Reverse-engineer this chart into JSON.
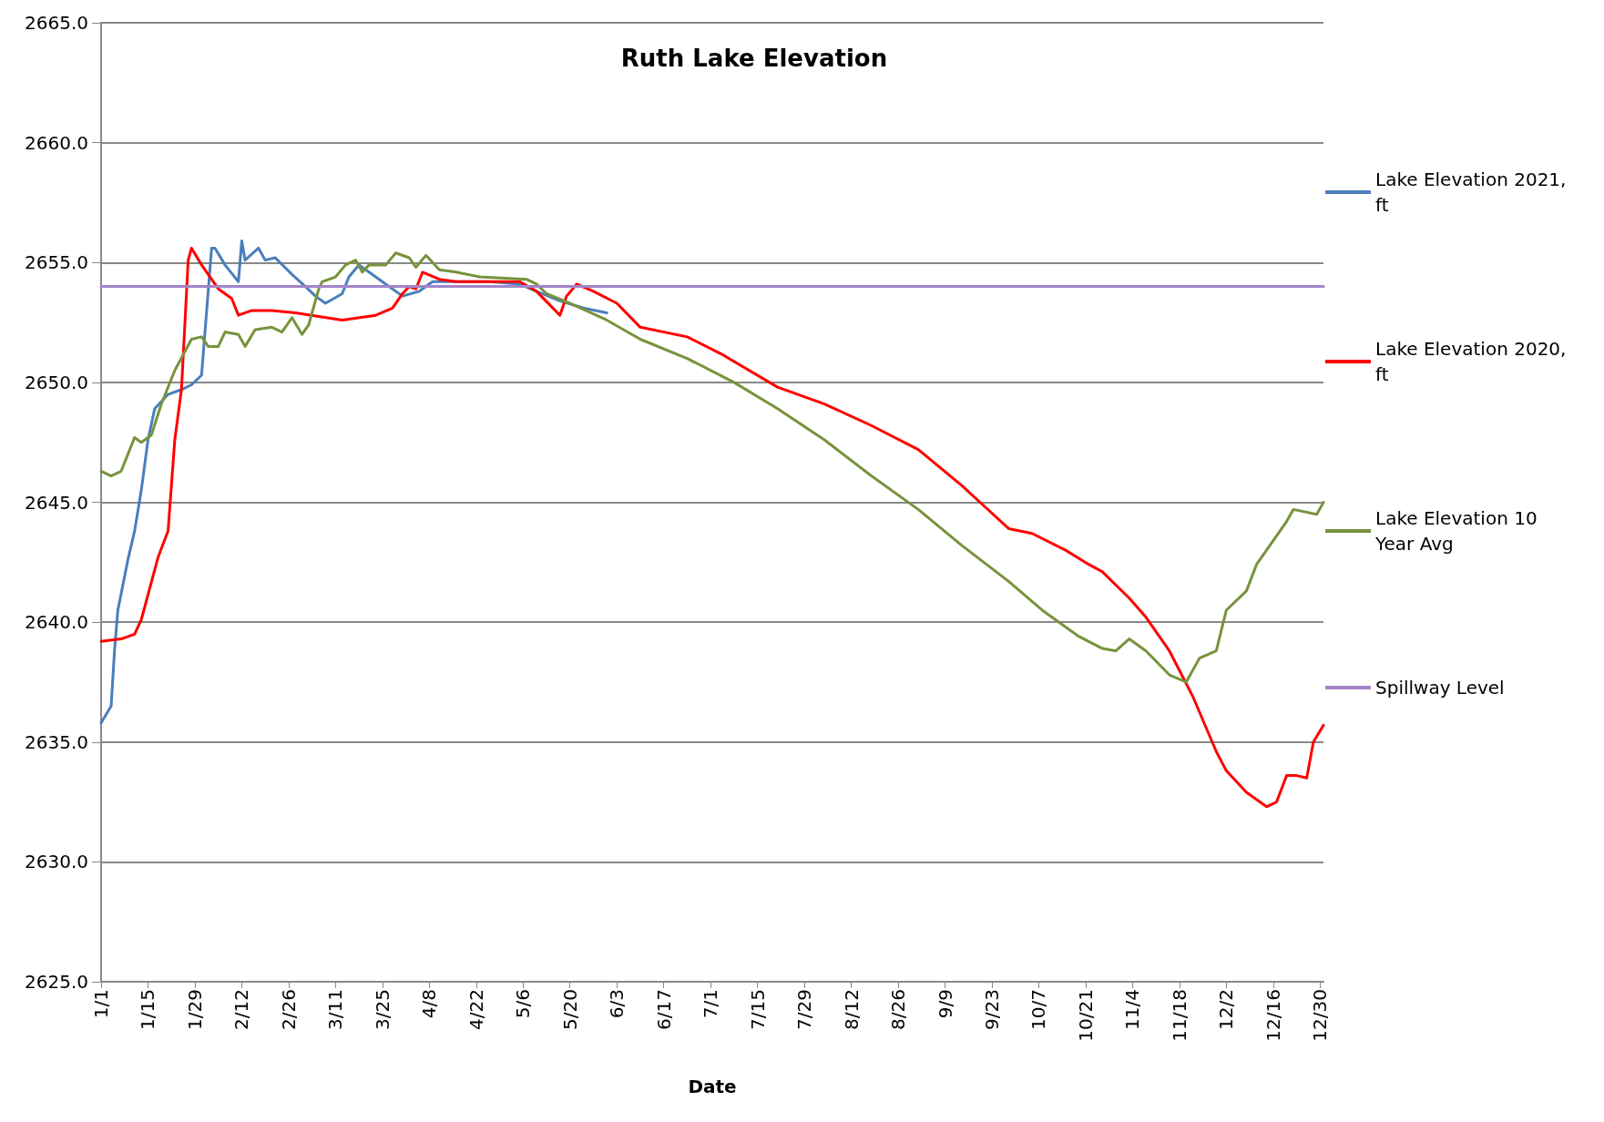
{
  "chart_data": {
    "type": "line",
    "title": "Ruth Lake Elevation",
    "xlabel": "Date",
    "xlim": [
      "2020-01-01",
      "2020-12-31"
    ],
    "xticks": [
      {
        "value": "2020-01-01",
        "label": "1/1"
      },
      {
        "value": "2020-01-15",
        "label": "1/15"
      },
      {
        "value": "2020-01-29",
        "label": "1/29"
      },
      {
        "value": "2020-02-12",
        "label": "2/12"
      },
      {
        "value": "2020-02-26",
        "label": "2/26"
      },
      {
        "value": "2020-03-11",
        "label": "3/11"
      },
      {
        "value": "2020-03-25",
        "label": "3/25"
      },
      {
        "value": "2020-04-08",
        "label": "4/8"
      },
      {
        "value": "2020-04-22",
        "label": "4/22"
      },
      {
        "value": "2020-05-06",
        "label": "5/6"
      },
      {
        "value": "2020-05-20",
        "label": "5/20"
      },
      {
        "value": "2020-06-03",
        "label": "6/3"
      },
      {
        "value": "2020-06-17",
        "label": "6/17"
      },
      {
        "value": "2020-07-01",
        "label": "7/1"
      },
      {
        "value": "2020-07-15",
        "label": "7/15"
      },
      {
        "value": "2020-07-29",
        "label": "7/29"
      },
      {
        "value": "2020-08-12",
        "label": "8/12"
      },
      {
        "value": "2020-08-26",
        "label": "8/26"
      },
      {
        "value": "2020-09-09",
        "label": "9/9"
      },
      {
        "value": "2020-09-23",
        "label": "9/23"
      },
      {
        "value": "2020-10-07",
        "label": "10/7"
      },
      {
        "value": "2020-10-21",
        "label": "10/21"
      },
      {
        "value": "2020-11-04",
        "label": "11/4"
      },
      {
        "value": "2020-11-18",
        "label": "11/18"
      },
      {
        "value": "2020-12-02",
        "label": "12/2"
      },
      {
        "value": "2020-12-16",
        "label": "12/16"
      },
      {
        "value": "2020-12-30",
        "label": "12/30"
      }
    ],
    "ylim": [
      2625,
      2665
    ],
    "yticks": [
      {
        "value": 2625,
        "label": "2625.0"
      },
      {
        "value": 2630,
        "label": "2630.0"
      },
      {
        "value": 2635,
        "label": "2635.0"
      },
      {
        "value": 2640,
        "label": "2640.0"
      },
      {
        "value": 2645,
        "label": "2645.0"
      },
      {
        "value": 2650,
        "label": "2650.0"
      },
      {
        "value": 2655,
        "label": "2655.0"
      },
      {
        "value": 2660,
        "label": "2660.0"
      },
      {
        "value": 2665,
        "label": "2665.0"
      }
    ],
    "grid": "y",
    "legend": "right",
    "marker": "none",
    "line_style": "solid",
    "series": [
      {
        "name": "Lake Elevation 2021, ft",
        "color": "#4a7ebb",
        "x": [
          "2020-01-01",
          "2020-01-04",
          "2020-01-05",
          "2020-01-06",
          "2020-01-09",
          "2020-01-11",
          "2020-01-13",
          "2020-01-15",
          "2020-01-17",
          "2020-01-21",
          "2020-01-25",
          "2020-01-28",
          "2020-01-31",
          "2020-02-03",
          "2020-02-04",
          "2020-02-07",
          "2020-02-11",
          "2020-02-12",
          "2020-02-13",
          "2020-02-17",
          "2020-02-19",
          "2020-02-22",
          "2020-02-27",
          "2020-03-02",
          "2020-03-05",
          "2020-03-08",
          "2020-03-13",
          "2020-03-15",
          "2020-03-18",
          "2020-03-21",
          "2020-03-26",
          "2020-03-31",
          "2020-04-05",
          "2020-04-09",
          "2020-04-16",
          "2020-04-26",
          "2020-05-05",
          "2020-05-10",
          "2020-05-17",
          "2020-05-24",
          "2020-05-31"
        ],
        "values": [
          2635.8,
          2636.5,
          2638.8,
          2640.5,
          2642.6,
          2643.8,
          2645.5,
          2647.6,
          2648.9,
          2649.5,
          2649.7,
          2649.9,
          2650.3,
          2655.6,
          2655.6,
          2654.9,
          2654.2,
          2655.9,
          2655.1,
          2655.6,
          2655.1,
          2655.2,
          2654.5,
          2654.0,
          2653.6,
          2653.3,
          2653.7,
          2654.4,
          2654.9,
          2654.6,
          2654.1,
          2653.6,
          2653.8,
          2654.2,
          2654.2,
          2654.2,
          2654.1,
          2653.8,
          2653.4,
          2653.1,
          2652.9
        ]
      },
      {
        "name": "Lake Elevation 2020, ft",
        "color": "#ff0000",
        "x": [
          "2020-01-01",
          "2020-01-07",
          "2020-01-11",
          "2020-01-13",
          "2020-01-18",
          "2020-01-21",
          "2020-01-23",
          "2020-01-25",
          "2020-01-27",
          "2020-01-28",
          "2020-01-31",
          "2020-02-05",
          "2020-02-09",
          "2020-02-11",
          "2020-02-15",
          "2020-02-21",
          "2020-02-28",
          "2020-03-13",
          "2020-03-23",
          "2020-03-28",
          "2020-03-31",
          "2020-04-02",
          "2020-04-04",
          "2020-04-06",
          "2020-04-11",
          "2020-04-16",
          "2020-05-05",
          "2020-05-10",
          "2020-05-17",
          "2020-05-19",
          "2020-05-22",
          "2020-05-27",
          "2020-06-03",
          "2020-06-10",
          "2020-06-24",
          "2020-07-04",
          "2020-07-21",
          "2020-08-04",
          "2020-08-18",
          "2020-09-01",
          "2020-09-14",
          "2020-09-21",
          "2020-09-28",
          "2020-10-05",
          "2020-10-15",
          "2020-10-22",
          "2020-10-26",
          "2020-11-03",
          "2020-11-08",
          "2020-11-15",
          "2020-11-22",
          "2020-11-29",
          "2020-12-02",
          "2020-12-08",
          "2020-12-14",
          "2020-12-17",
          "2020-12-20",
          "2020-12-23",
          "2020-12-26",
          "2020-12-28",
          "2020-12-31"
        ],
        "values": [
          2639.2,
          2639.3,
          2639.5,
          2640.1,
          2642.7,
          2643.8,
          2647.6,
          2649.7,
          2655.1,
          2655.6,
          2654.9,
          2653.9,
          2653.5,
          2652.8,
          2653.0,
          2653.0,
          2652.9,
          2652.6,
          2652.8,
          2653.1,
          2653.7,
          2654.0,
          2653.9,
          2654.6,
          2654.3,
          2654.2,
          2654.2,
          2653.8,
          2652.8,
          2653.6,
          2654.1,
          2653.8,
          2653.3,
          2652.3,
          2651.9,
          2651.2,
          2649.8,
          2649.1,
          2648.2,
          2647.2,
          2645.7,
          2644.8,
          2643.9,
          2643.7,
          2643.0,
          2642.4,
          2642.1,
          2641.0,
          2640.2,
          2638.8,
          2636.9,
          2634.6,
          2633.8,
          2632.9,
          2632.3,
          2632.5,
          2633.6,
          2633.6,
          2633.5,
          2635.0,
          2635.7
        ]
      },
      {
        "name": "Lake Elevation 10 Year Avg",
        "color": "#77933c",
        "x": [
          "2020-01-01",
          "2020-01-04",
          "2020-01-07",
          "2020-01-11",
          "2020-01-13",
          "2020-01-16",
          "2020-01-19",
          "2020-01-23",
          "2020-01-28",
          "2020-01-31",
          "2020-02-02",
          "2020-02-05",
          "2020-02-07",
          "2020-02-11",
          "2020-02-13",
          "2020-02-16",
          "2020-02-21",
          "2020-02-24",
          "2020-02-27",
          "2020-03-01",
          "2020-03-03",
          "2020-03-06",
          "2020-03-07",
          "2020-03-11",
          "2020-03-14",
          "2020-03-17",
          "2020-03-19",
          "2020-03-21",
          "2020-03-26",
          "2020-03-29",
          "2020-04-02",
          "2020-04-04",
          "2020-04-07",
          "2020-04-11",
          "2020-04-16",
          "2020-04-23",
          "2020-05-07",
          "2020-05-10",
          "2020-05-13",
          "2020-05-20",
          "2020-05-31",
          "2020-06-10",
          "2020-06-24",
          "2020-07-08",
          "2020-07-21",
          "2020-08-04",
          "2020-08-18",
          "2020-09-01",
          "2020-09-14",
          "2020-09-28",
          "2020-10-08",
          "2020-10-19",
          "2020-10-26",
          "2020-10-30",
          "2020-11-03",
          "2020-11-08",
          "2020-11-15",
          "2020-11-20",
          "2020-11-24",
          "2020-11-29",
          "2020-12-02",
          "2020-12-08",
          "2020-12-11",
          "2020-12-16",
          "2020-12-20",
          "2020-12-22",
          "2020-12-29",
          "2020-12-31"
        ],
        "values": [
          2646.3,
          2646.1,
          2646.3,
          2647.7,
          2647.5,
          2647.8,
          2649.1,
          2650.5,
          2651.8,
          2651.9,
          2651.5,
          2651.5,
          2652.1,
          2652.0,
          2651.5,
          2652.2,
          2652.3,
          2652.1,
          2652.7,
          2652.0,
          2652.4,
          2653.9,
          2654.2,
          2654.4,
          2654.9,
          2655.1,
          2654.6,
          2654.9,
          2654.9,
          2655.4,
          2655.2,
          2654.8,
          2655.3,
          2654.7,
          2654.6,
          2654.4,
          2654.3,
          2654.1,
          2653.7,
          2653.3,
          2652.6,
          2651.8,
          2651.0,
          2650.0,
          2648.9,
          2647.6,
          2646.1,
          2644.7,
          2643.2,
          2641.7,
          2640.5,
          2639.4,
          2638.9,
          2638.8,
          2639.3,
          2638.8,
          2637.8,
          2637.5,
          2638.5,
          2638.8,
          2640.5,
          2641.3,
          2642.4,
          2643.4,
          2644.2,
          2644.7,
          2644.5,
          2645.0
        ]
      },
      {
        "name": "Spillway Level",
        "color": "#a384c8",
        "x": [
          "2020-01-01",
          "2020-12-31"
        ],
        "values": [
          2654.0,
          2654.0
        ]
      }
    ]
  }
}
